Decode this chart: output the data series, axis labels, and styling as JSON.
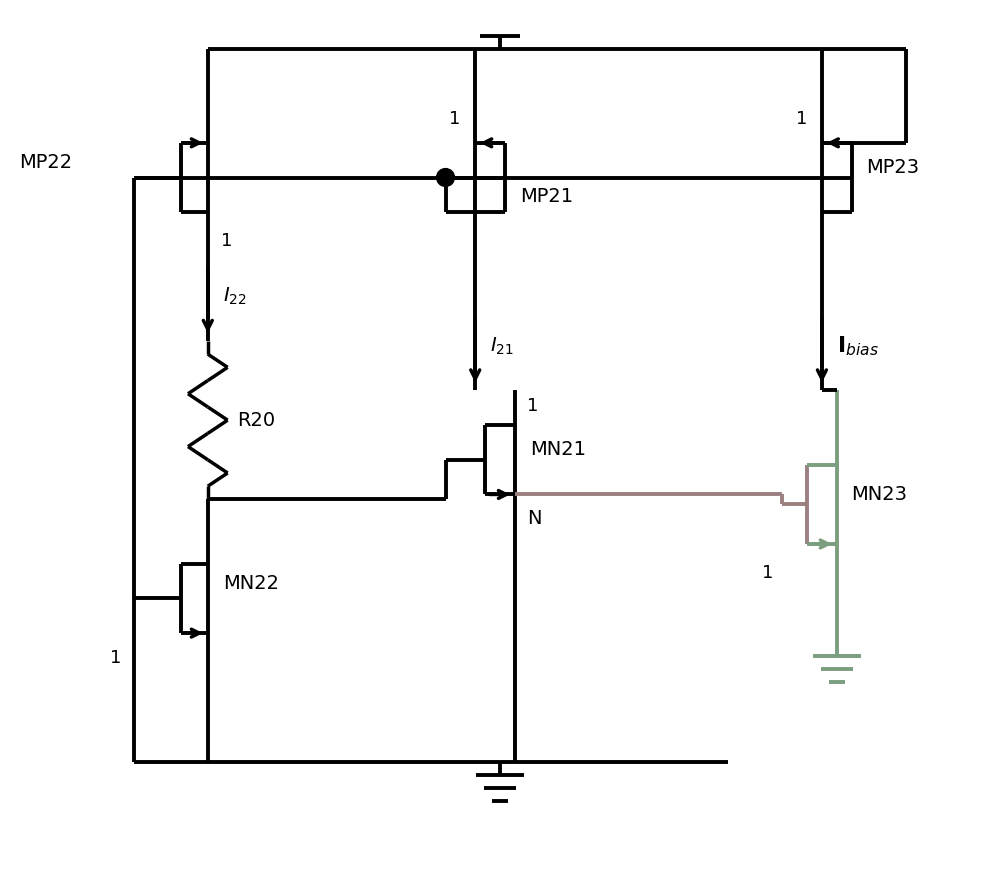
{
  "bg_color": "#ffffff",
  "lc": "#000000",
  "lw": 2.8,
  "mn23_gate_color": "#9B8080",
  "mn23_body_color": "#7A9E7E",
  "xlim": [
    0,
    10
  ],
  "ylim": [
    0,
    8.75
  ],
  "figsize": [
    10.0,
    8.75
  ],
  "dpi": 100
}
